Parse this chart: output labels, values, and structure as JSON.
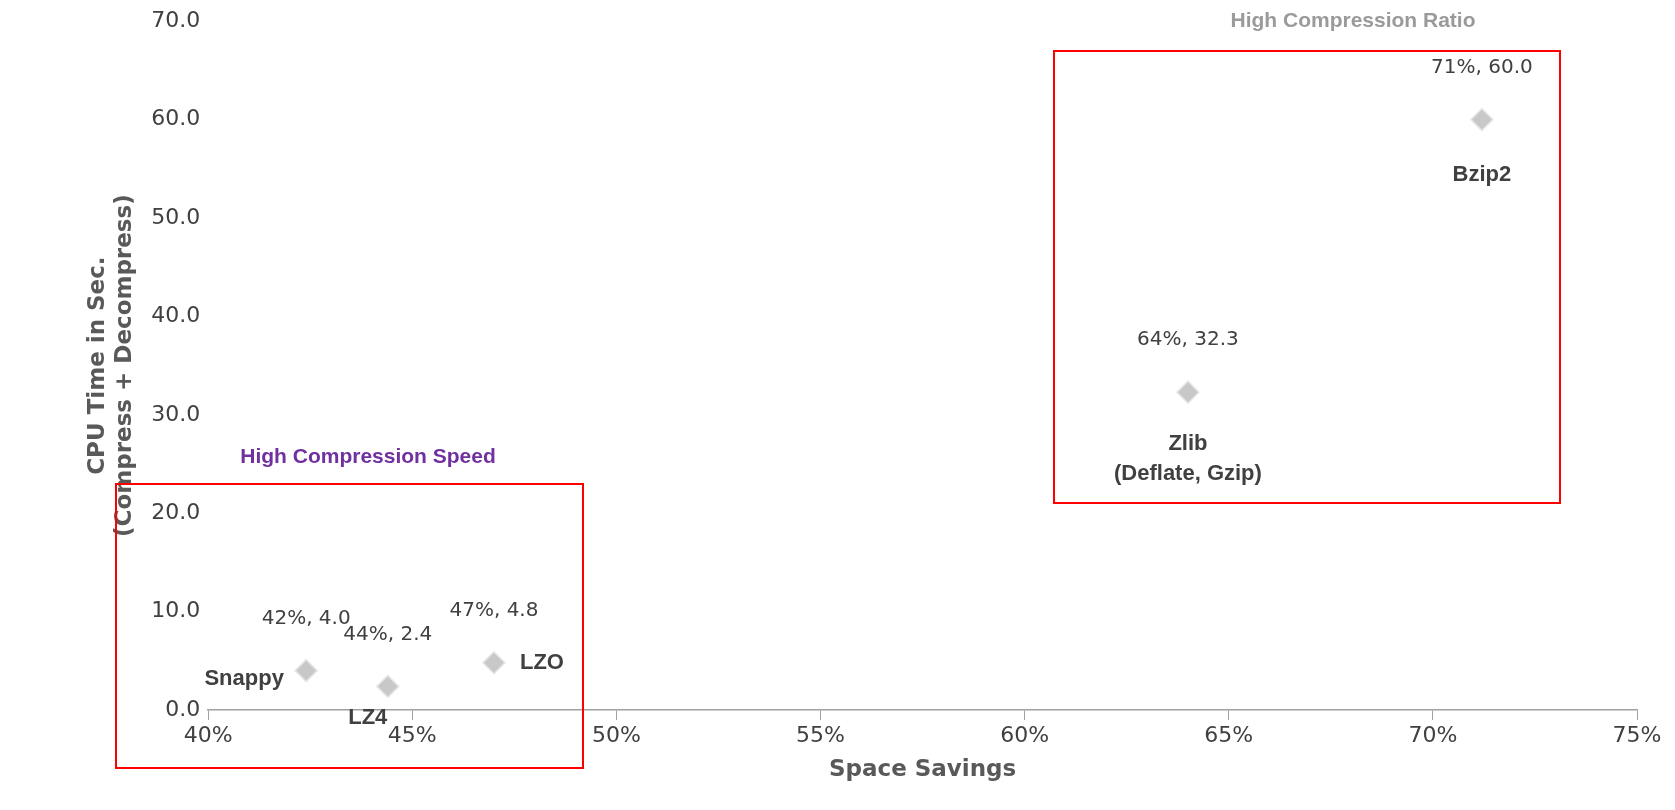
{
  "chart_data": {
    "type": "scatter",
    "xlabel": "Space Savings",
    "ylabel": "CPU Time in Sec.\n(Compress + Decompress)",
    "x": [
      42.4,
      44.4,
      47.0,
      64.0,
      71.2
    ],
    "series": [
      {
        "color": "#c8c8c8",
        "values": [
          4.0,
          2.4,
          4.8,
          32.3,
          60.0
        ],
        "value_labels": [
          "42%, 4.0",
          "44%, 2.4",
          "47%, 4.8",
          "64%, 32.3",
          "71%, 60.0"
        ]
      }
    ],
    "marker": "diamond",
    "grid": false,
    "legend": false,
    "xlim": [
      40,
      75
    ],
    "xticks": [
      {
        "value": 40,
        "label": "40%"
      },
      {
        "value": 45,
        "label": "45%"
      },
      {
        "value": 50,
        "label": "50%"
      },
      {
        "value": 55,
        "label": "55%"
      },
      {
        "value": 60,
        "label": "60%"
      },
      {
        "value": 65,
        "label": "65%"
      },
      {
        "value": 70,
        "label": "70%"
      },
      {
        "value": 75,
        "label": "75%"
      }
    ],
    "ylim": [
      0,
      70
    ],
    "yticks": [
      {
        "value": 0,
        "label": "0.0"
      },
      {
        "value": 10,
        "label": "10.0"
      },
      {
        "value": 20,
        "label": "20.0"
      },
      {
        "value": 30,
        "label": "30.0"
      },
      {
        "value": 40,
        "label": "40.0"
      },
      {
        "value": 50,
        "label": "50.0"
      },
      {
        "value": 60,
        "label": "60.0"
      },
      {
        "value": 70,
        "label": "70.0"
      }
    ],
    "annotations": [
      {
        "text": "Snappy",
        "x": 42.4,
        "y": 4.0
      },
      {
        "text": "LZ4",
        "x": 44.4,
        "y": 2.4
      },
      {
        "text": "LZO",
        "x": 47.0,
        "y": 4.8
      },
      {
        "text": "Zlib\n(Deflate, Gzip)",
        "x": 64.0,
        "y": 32.3
      },
      {
        "text": "Bzip2",
        "x": 71.2,
        "y": 60.0
      },
      "High Compression Speed",
      "High Compression Ratio"
    ]
  }
}
